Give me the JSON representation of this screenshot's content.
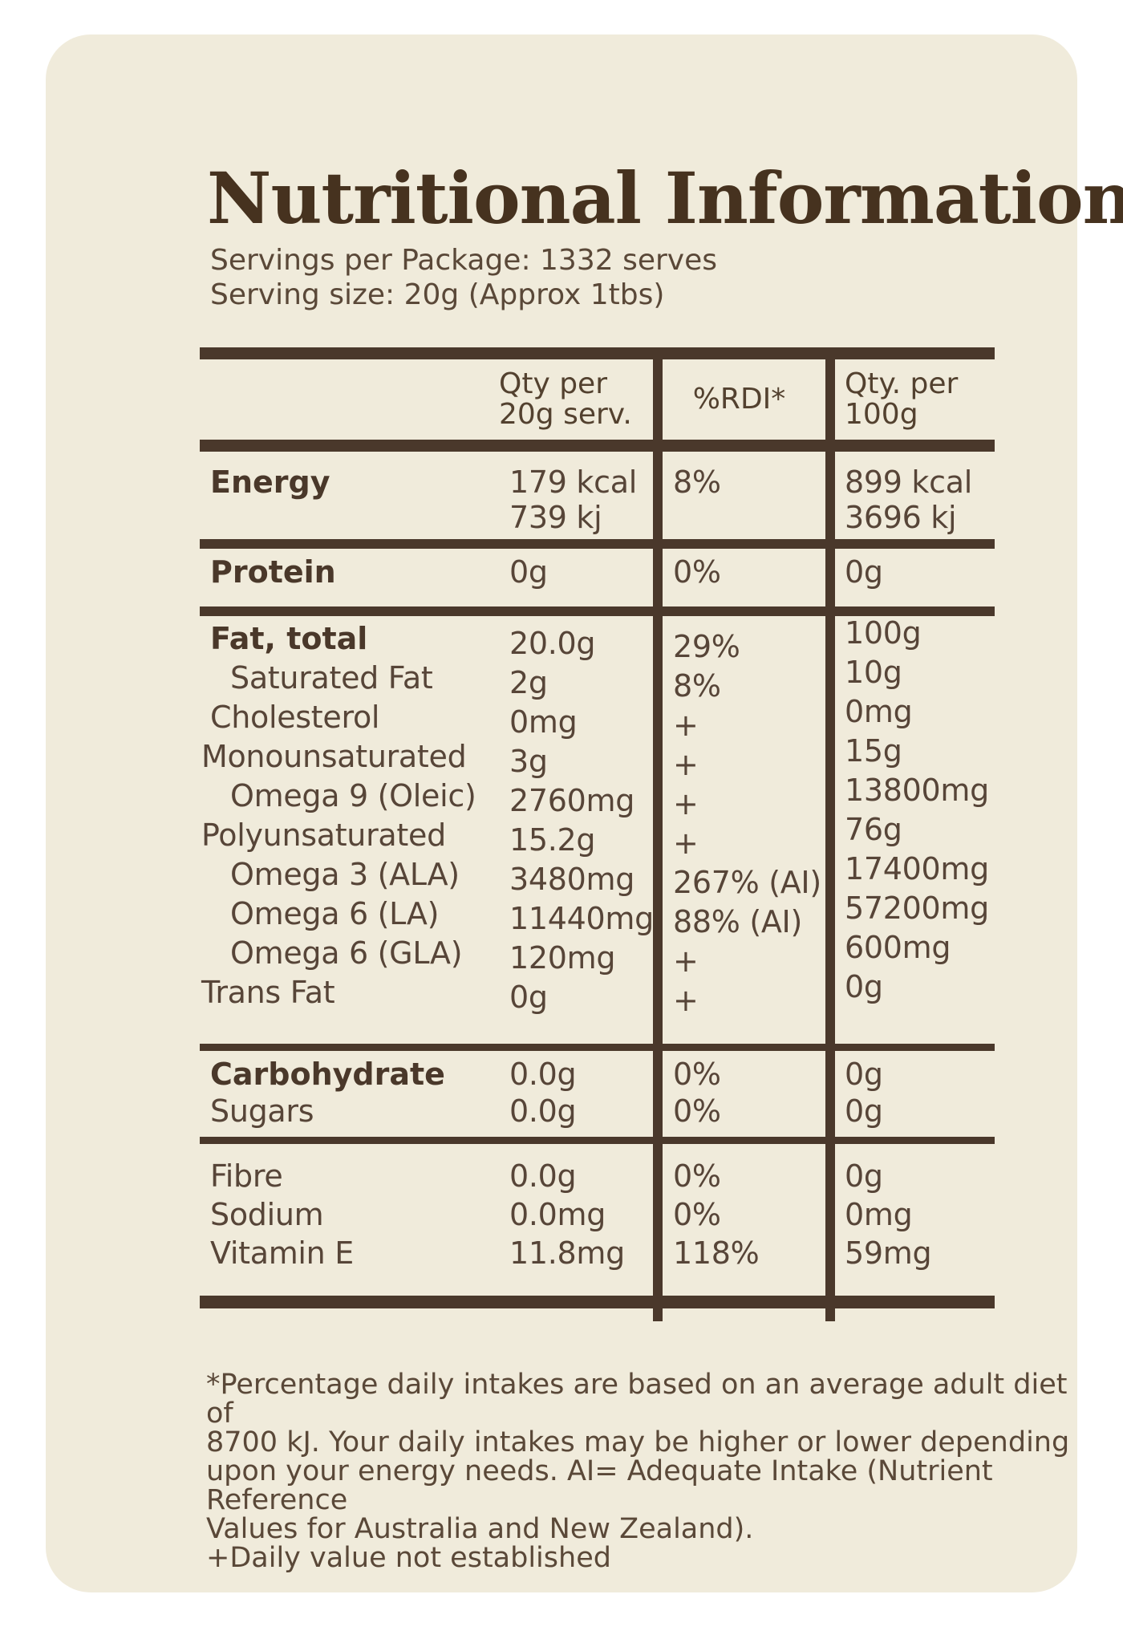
{
  "title": "Nutritional Information",
  "serving_info": {
    "text": "Servings per Package: 1332 serves\nServing size: 20g (Approx 1tbs)"
  },
  "table": {
    "columns": {
      "qty_per_serve": "Qty per\n20g serv.",
      "rdi": "%RDI*",
      "qty_per_100g": "Qty. per\n100g"
    },
    "sections": [
      {
        "id": "energy",
        "rows": [
          {
            "label": "Energy",
            "bold": true,
            "ind": 1,
            "v1": "179 kcal",
            "v2": "8%",
            "v3": "899 kcal"
          },
          {
            "label": "",
            "ind": 1,
            "v1": "739 kj",
            "v2": "",
            "v3": "3696 kj"
          }
        ],
        "bar_after": 12
      },
      {
        "id": "protein",
        "rows": [
          {
            "label": "Protein",
            "bold": true,
            "ind": 1,
            "v1": "0g",
            "v2": "0%",
            "v3": "0g"
          }
        ],
        "bar_after": 12
      },
      {
        "id": "fat",
        "rows": [
          {
            "label": "Fat, total",
            "bold": true,
            "ind": 1,
            "v1": "20.0g",
            "v2": "29%",
            "v3": "100g"
          },
          {
            "label": "Saturated Fat",
            "ind": 2,
            "v1": "2g",
            "v2": "8%",
            "v3": "10g"
          },
          {
            "label": "Cholesterol",
            "ind": 1,
            "v1": "0mg",
            "v2": "+",
            "v3": "0mg"
          },
          {
            "label": "Monounsaturated",
            "ind": 0,
            "v1": "3g",
            "v2": "+",
            "v3": "15g"
          },
          {
            "label": "Omega 9 (Oleic)",
            "ind": 2,
            "v1": "2760mg",
            "v2": "+",
            "v3": "13800mg"
          },
          {
            "label": "Polyunsaturated",
            "ind": 0,
            "v1": "15.2g",
            "v2": "+",
            "v3": "76g"
          },
          {
            "label": "Omega 3 (ALA)",
            "ind": 2,
            "v1": "3480mg",
            "v2": "267% (AI)",
            "v3": "17400mg"
          },
          {
            "label": "Omega 6 (LA)",
            "ind": 2,
            "v1": "11440mg",
            "v2": "88% (AI)",
            "v3": "57200mg"
          },
          {
            "label": "Omega 6 (GLA)",
            "ind": 2,
            "v1": "120mg",
            "v2": "+",
            "v3": "600mg"
          },
          {
            "label": "Trans Fat",
            "ind": 0,
            "v1": "0g",
            "v2": "+",
            "v3": "0g"
          }
        ],
        "bar_after": 9
      },
      {
        "id": "carbs",
        "rows": [
          {
            "label": "Carbohydrate",
            "bold": true,
            "ind": 1,
            "v1": "0.0g",
            "v2": "0%",
            "v3": "0g"
          },
          {
            "label": "Sugars",
            "ind": 1,
            "v1": "0.0g",
            "v2": "0%",
            "v3": "0g"
          }
        ],
        "bar_after": 9
      },
      {
        "id": "micro",
        "rows": [
          {
            "label": "Fibre",
            "ind": 1,
            "v1": "0.0g",
            "v2": "0%",
            "v3": "0g"
          },
          {
            "label": "Sodium",
            "ind": 1,
            "v1": "0.0mg",
            "v2": "0%",
            "v3": "0mg"
          },
          {
            "label": "Vitamin E",
            "ind": 1,
            "v1": "11.8mg",
            "v2": "118%",
            "v3": "59mg"
          }
        ],
        "bar_after": 16
      }
    ]
  },
  "footnote": {
    "lines": [
      "*Percentage daily intakes are based on an average adult diet of",
      "8700 kJ. Your daily intakes may be higher or lower depending",
      "upon your energy needs. AI= Adequate Intake (Nutrient Reference",
      "Values for Australia and New Zealand).",
      "+Daily value not established"
    ]
  },
  "colors": {
    "page_background": "#FFFFFF",
    "card_background": "#F0EBDB",
    "rule_brown": "#4A382B",
    "title_brown": "#46321F",
    "text_brown": "#574538"
  }
}
